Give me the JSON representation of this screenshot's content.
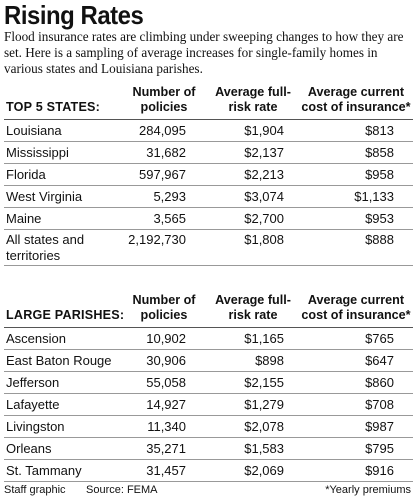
{
  "title": "Rising Rates",
  "subtitle": "Flood insurance rates are climbing under sweeping changes to how they are set. Here is a sampling of average increases for single-family homes in various states and Louisiana parishes.",
  "states": {
    "label": "TOP 5 STATES:",
    "headers": [
      "Number of policies",
      "Average full-risk rate",
      "Average current cost of insurance*"
    ],
    "rows": [
      {
        "name": "Louisiana",
        "policies": "284,095",
        "rate": "$1,904",
        "cost": "$813"
      },
      {
        "name": "Mississippi",
        "policies": "31,682",
        "rate": "$2,137",
        "cost": "$858"
      },
      {
        "name": "Florida",
        "policies": "597,967",
        "rate": "$2,213",
        "cost": "$958"
      },
      {
        "name": "West Virginia",
        "policies": "5,293",
        "rate": "$3,074",
        "cost": "$1,133"
      },
      {
        "name": "Maine",
        "policies": "3,565",
        "rate": "$2,700",
        "cost": "$953"
      },
      {
        "name": "All states and territories",
        "policies": "2,192,730",
        "rate": "$1,808",
        "cost": "$888"
      }
    ]
  },
  "parishes": {
    "label": "LARGE PARISHES:",
    "headers": [
      "Number of policies",
      "Average full-risk rate",
      "Average current cost of insurance*"
    ],
    "rows": [
      {
        "name": "Ascension",
        "policies": "10,902",
        "rate": "$1,165",
        "cost": "$765"
      },
      {
        "name": "East Baton Rouge",
        "policies": "30,906",
        "rate": "$898",
        "cost": "$647"
      },
      {
        "name": "Jefferson",
        "policies": "55,058",
        "rate": "$2,155",
        "cost": "$860"
      },
      {
        "name": "Lafayette",
        "policies": "14,927",
        "rate": "$1,279",
        "cost": "$708"
      },
      {
        "name": "Livingston",
        "policies": "11,340",
        "rate": "$2,078",
        "cost": "$987"
      },
      {
        "name": "Orleans",
        "policies": "35,271",
        "rate": "$1,583",
        "cost": "$795"
      },
      {
        "name": "St. Tammany",
        "policies": "31,457",
        "rate": "$2,069",
        "cost": "$916"
      }
    ]
  },
  "footer": {
    "credit": "Staff graphic",
    "source": "Source: FEMA",
    "note": "*Yearly premiums"
  }
}
